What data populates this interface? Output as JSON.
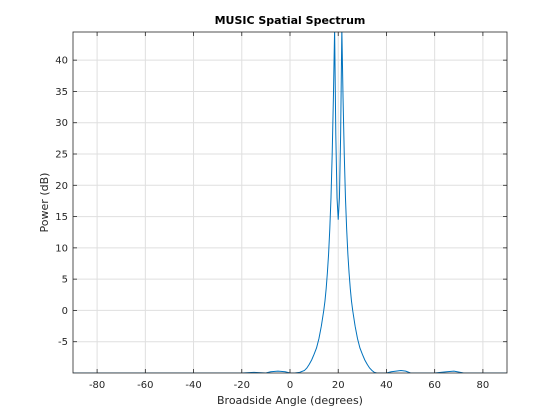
{
  "chart_data": {
    "type": "line",
    "title": "MUSIC Spatial Spectrum",
    "xlabel": "Broadside Angle (degrees)",
    "ylabel": "Power (dB)",
    "xlim": [
      -90,
      90
    ],
    "ylim": [
      -10,
      44.5
    ],
    "xticks": [
      -80,
      -60,
      -40,
      -20,
      0,
      20,
      40,
      60,
      80
    ],
    "yticks": [
      -5,
      0,
      5,
      10,
      15,
      20,
      25,
      30,
      35,
      40
    ],
    "grid": true,
    "line_color": "#0072bd",
    "series": [
      {
        "x": [
          -90,
          -80,
          -60,
          -40,
          -30,
          -20,
          -15,
          -10,
          -8,
          -5,
          -2,
          0,
          2,
          4,
          6,
          7,
          8,
          9,
          10,
          11,
          12,
          13,
          14,
          14.5,
          15,
          15.5,
          16,
          16.5,
          17,
          17.5,
          18,
          18.5,
          19,
          19.5,
          20,
          20.5,
          21,
          21.5,
          22,
          22.5,
          23,
          23.5,
          24,
          24.5,
          25,
          25.5,
          26,
          27,
          28,
          29,
          30,
          31,
          32,
          33,
          34,
          35,
          36,
          38,
          40,
          42,
          44,
          46,
          48,
          50,
          55,
          60,
          65,
          68,
          72,
          80,
          90
        ],
        "y": [
          -10,
          -10,
          -10,
          -10,
          -10,
          -10,
          -9.9,
          -10,
          -9.8,
          -9.7,
          -9.8,
          -10,
          -10,
          -9.9,
          -9.6,
          -9.2,
          -8.6,
          -7.9,
          -7,
          -6,
          -4.5,
          -2.5,
          0,
          1.5,
          3.5,
          6,
          9,
          13,
          18,
          25,
          34,
          45,
          28,
          18,
          14.5,
          18,
          28,
          45,
          34,
          25,
          18,
          13,
          9,
          6,
          3.5,
          1.5,
          0,
          -2.5,
          -4.5,
          -6,
          -7,
          -7.9,
          -8.6,
          -9.2,
          -9.6,
          -9.9,
          -10,
          -10,
          -10,
          -9.8,
          -9.7,
          -9.6,
          -9.7,
          -10,
          -10,
          -10,
          -9.8,
          -9.7,
          -10,
          -10,
          -10
        ]
      }
    ]
  }
}
